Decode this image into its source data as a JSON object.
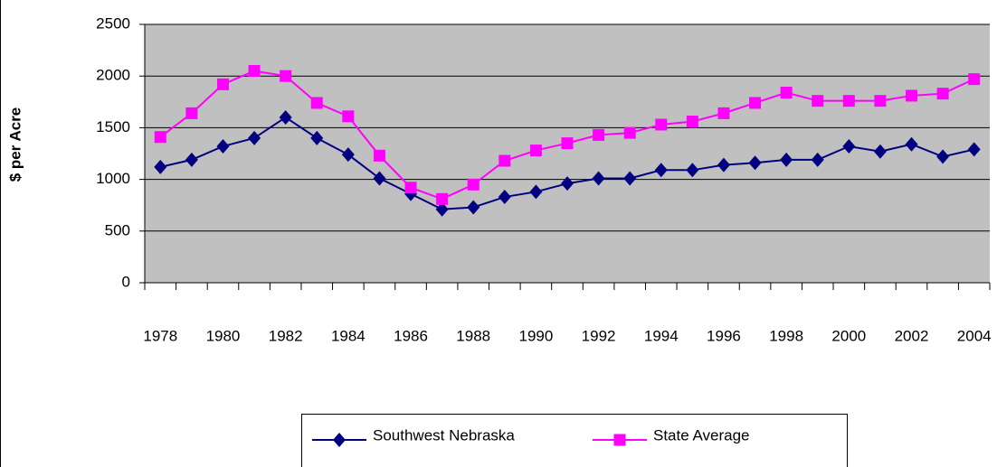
{
  "chart_data": {
    "type": "line",
    "y_label": "$ per Acre",
    "categories": [
      "1978",
      null,
      "1980",
      null,
      "1982",
      null,
      "1984",
      null,
      "1986",
      null,
      "1988",
      null,
      "1990",
      null,
      "1992",
      null,
      "1994",
      null,
      "1996",
      null,
      "1998",
      null,
      "2000",
      null,
      "2002",
      null,
      "2004"
    ],
    "series": [
      {
        "name": "Southwest Nebraska",
        "color": "#000080",
        "marker": "diamond",
        "values": [
          1120,
          1190,
          1320,
          1400,
          1600,
          1400,
          1240,
          1010,
          860,
          710,
          730,
          830,
          880,
          960,
          1010,
          1010,
          1090,
          1090,
          1140,
          1160,
          1190,
          1190,
          1320,
          1270,
          1340,
          1220,
          1290
        ]
      },
      {
        "name": "State Average",
        "color": "#ff00ff",
        "marker": "square",
        "values": [
          1410,
          1640,
          1920,
          2050,
          2000,
          1740,
          1610,
          1230,
          920,
          810,
          950,
          1180,
          1280,
          1350,
          1430,
          1450,
          1530,
          1560,
          1640,
          1740,
          1840,
          1760,
          1760,
          1760,
          1810,
          1830,
          1970
        ]
      }
    ],
    "ylim": [
      0,
      2500
    ],
    "yticks": [
      0,
      500,
      1000,
      1500,
      2000,
      2500
    ],
    "grid": true,
    "plot_background": "#c0c0c0",
    "legend": "bottom"
  }
}
